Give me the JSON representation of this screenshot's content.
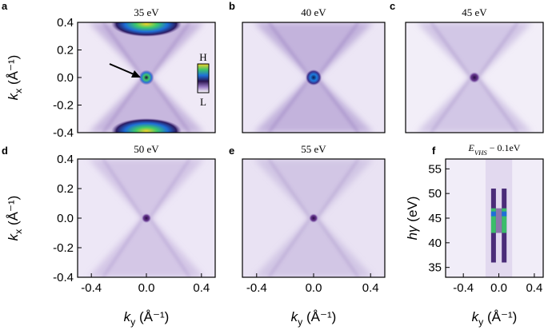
{
  "chart_data": [
    {
      "type": "heatmap",
      "panel_label": "a",
      "title": "35 eV",
      "photon_energy_eV": 35,
      "xlabel": "",
      "ylabel_main": "k",
      "ylabel_sub": "x",
      "ylabel_unit": "(Å⁻¹)",
      "xlim": [
        -0.5,
        0.5
      ],
      "ylim": [
        -0.4,
        0.4
      ],
      "yticks": [
        "0.4",
        "0.2",
        "0.0",
        "-0.2",
        "-0.4"
      ],
      "features": {
        "center_spot_intensity": 0.9,
        "top_pocket_ky": 0.0,
        "top_pocket_kx": 0.4,
        "bottom_pocket_kx": -0.4,
        "hourglass": true
      },
      "colorbar": {
        "high_label": "H",
        "low_label": "L"
      },
      "annotation": "arrow pointing to Γ spot"
    },
    {
      "type": "heatmap",
      "panel_label": "b",
      "title": "40 eV",
      "photon_energy_eV": 40,
      "xlim": [
        -0.5,
        0.5
      ],
      "ylim": [
        -0.4,
        0.4
      ],
      "features": {
        "center_spot_intensity": 1.0,
        "hourglass": true
      }
    },
    {
      "type": "heatmap",
      "panel_label": "c",
      "title": "45 eV",
      "photon_energy_eV": 45,
      "xlim": [
        -0.5,
        0.5
      ],
      "ylim": [
        -0.4,
        0.4
      ],
      "features": {
        "center_spot_intensity": 0.5,
        "hourglass": true
      }
    },
    {
      "type": "heatmap",
      "panel_label": "d",
      "title": "50 eV",
      "photon_energy_eV": 50,
      "xlabel_main": "k",
      "xlabel_sub": "y",
      "xlabel_unit": "(Å⁻¹)",
      "ylabel_main": "k",
      "ylabel_sub": "x",
      "ylabel_unit": "(Å⁻¹)",
      "xlim": [
        -0.5,
        0.5
      ],
      "ylim": [
        -0.4,
        0.4
      ],
      "xticks": [
        "-0.4",
        "0.0",
        "0.4"
      ],
      "yticks": [
        "0.4",
        "0.2",
        "0.0",
        "-0.2",
        "-0.4"
      ],
      "features": {
        "center_spot_intensity": 0.35,
        "hourglass": true
      }
    },
    {
      "type": "heatmap",
      "panel_label": "e",
      "title": "55 eV",
      "photon_energy_eV": 55,
      "xlabel_main": "k",
      "xlabel_sub": "y",
      "xlabel_unit": "(Å⁻¹)",
      "xlim": [
        -0.5,
        0.5
      ],
      "ylim": [
        -0.4,
        0.4
      ],
      "xticks": [
        "-0.4",
        "0.0",
        "0.4"
      ],
      "features": {
        "center_spot_intensity": 0.3,
        "hourglass": true
      }
    },
    {
      "type": "heatmap",
      "panel_label": "f",
      "title_main": "E",
      "title_sub": "VHS",
      "title_rest": " − 0.1eV",
      "xlabel_main": "k",
      "xlabel_sub": "y",
      "xlabel_unit": "(Å⁻¹)",
      "ylabel_main": "hγ",
      "ylabel_unit": "(eV)",
      "xlim": [
        -0.6,
        0.5
      ],
      "ylim": [
        33,
        57
      ],
      "xticks": [
        "-0.4",
        "0.0",
        "0.4"
      ],
      "yticks": [
        "55",
        "50",
        "45",
        "40",
        "35"
      ],
      "ytick_values": [
        55,
        50,
        45,
        40,
        35
      ],
      "features": {
        "stripe_ky": [
          -0.06,
          0.06
        ],
        "stripe_energy_range_eV": [
          36,
          51
        ],
        "max_intensity_eV": [
          42,
          47
        ]
      }
    }
  ]
}
